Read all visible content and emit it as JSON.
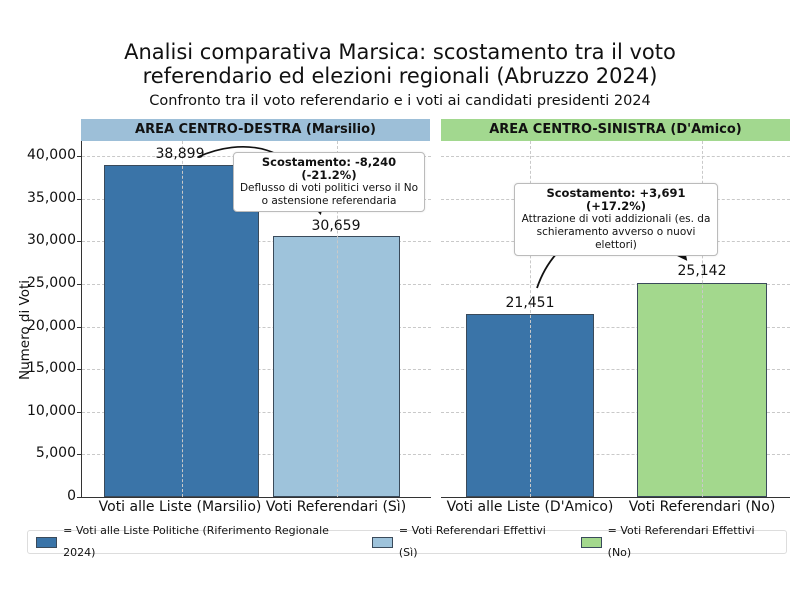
{
  "chart_data": {
    "type": "bar",
    "title": "Analisi comparativa Marsica: scostamento tra il voto referendario ed elezioni regionali (Abruzzo 2024)",
    "title_lines": [
      "Analisi comparativa Marsica: scostamento tra il voto",
      "referendario ed elezioni regionali (Abruzzo 2024)"
    ],
    "subtitle": "Confronto tra il voto referendario e i voti ai candidati presidenti 2024",
    "ylabel": "Numero di Voti",
    "ylim": [
      0,
      40000
    ],
    "yticks": [
      "0",
      "5,000",
      "10,000",
      "15,000",
      "20,000",
      "25,000",
      "30,000",
      "35,000",
      "40,000"
    ],
    "grid": true,
    "panels": [
      {
        "header": "AREA CENTRO-DESTRA (Marsilio)",
        "header_color": "#9dbfd8",
        "categories": [
          "Voti alle Liste (Marsilio)",
          "Voti Referendari (Sì)"
        ],
        "values": [
          38899,
          30659
        ],
        "value_labels": [
          "38,899",
          "30,659"
        ],
        "colors": [
          "#3a74a8",
          "#9ec3db"
        ],
        "annotation": {
          "title": "Scostamento: -8,240 (-21.2%)",
          "line1": "Deflusso di voti politici verso il No",
          "line2": "o astensione referendaria"
        }
      },
      {
        "header": "AREA CENTRO-SINISTRA (D'Amico)",
        "header_color": "#a2d88f",
        "categories": [
          "Voti alle Liste (D'Amico)",
          "Voti Referendari (No)"
        ],
        "values": [
          21451,
          25142
        ],
        "value_labels": [
          "21,451",
          "25,142"
        ],
        "colors": [
          "#3a74a8",
          "#a3d88d"
        ],
        "annotation": {
          "title": "Scostamento: +3,691 (+17.2%)",
          "line1": "Attrazione di voti addizionali (es. da",
          "line2": "schieramento avverso o nuovi elettori)"
        }
      }
    ],
    "legend": [
      {
        "label": "= Voti alle Liste Politiche (Riferimento Regionale 2024)",
        "color": "#3a74a8"
      },
      {
        "label": "= Voti Referendari Effettivi (Sì)",
        "color": "#9ec3db"
      },
      {
        "label": "= Voti Referendari Effettivi (No)",
        "color": "#a3d88d"
      }
    ],
    "legend_position": "bottom"
  }
}
